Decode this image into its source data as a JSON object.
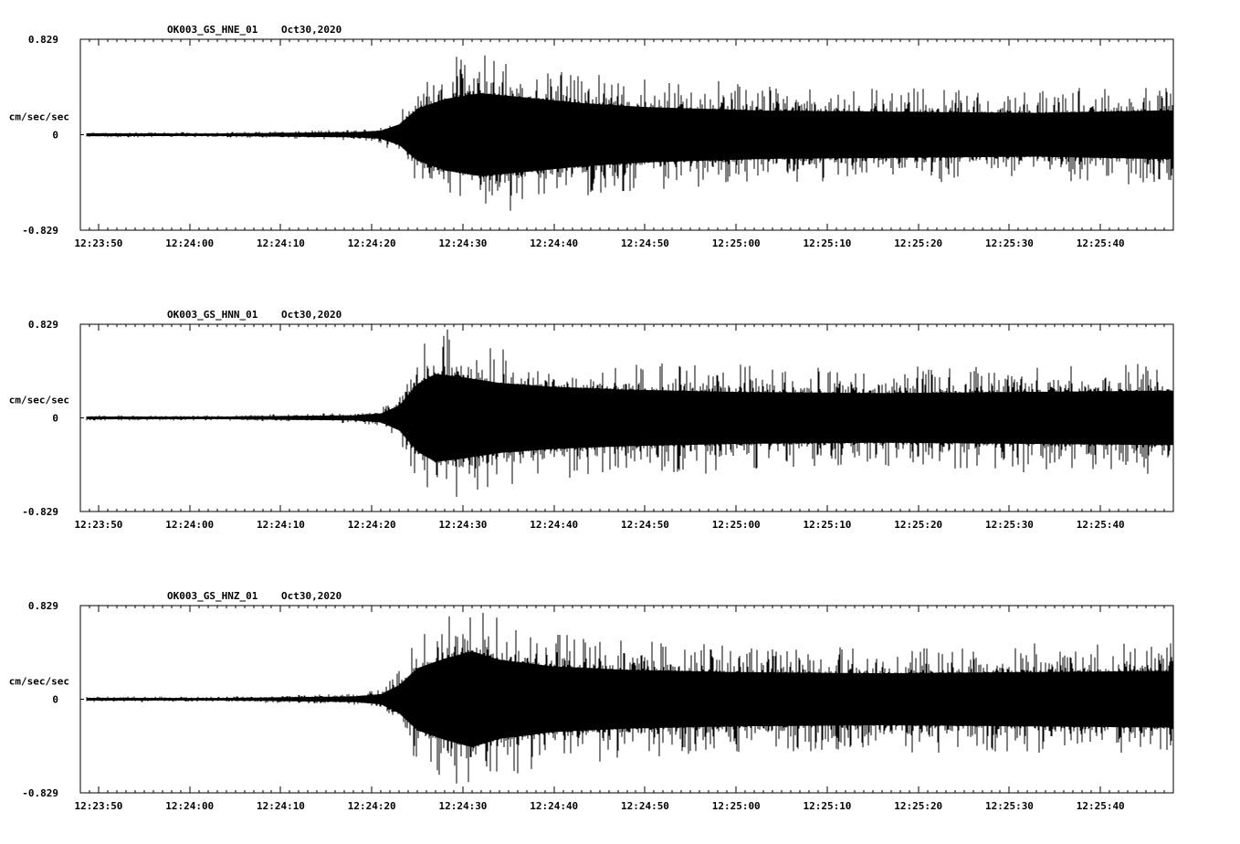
{
  "figure": {
    "background": "#ffffff",
    "trace_color": "#000000",
    "axis_color": "#000000",
    "text_color": "#000000"
  },
  "chart_data": [
    {
      "type": "line",
      "name": "HNE",
      "title": {
        "station": "OK003_GS_HNE_01",
        "date": "Oct30,2020"
      },
      "ylabel": "cm/sec/sec",
      "ylim": [
        -0.829,
        0.829
      ],
      "y_tick_labels": [
        "0.829",
        "0",
        "-0.829"
      ],
      "x_start_time": "12:23:48",
      "x_span_seconds": 120,
      "x_tick_labels": [
        "12:23:50",
        "12:24:00",
        "12:24:10",
        "12:24:20",
        "12:24:30",
        "12:24:40",
        "12:24:50",
        "12:25:00",
        "12:25:10",
        "12:25:20",
        "12:25:30",
        "12:25:40"
      ],
      "x_tick_offsets_s": [
        2,
        12,
        22,
        32,
        42,
        52,
        62,
        72,
        82,
        92,
        102,
        112
      ],
      "x_minor_tick_interval_s": 1,
      "seed": 101,
      "envelope_t_s": [
        0,
        15,
        20,
        30,
        33,
        35,
        37,
        40,
        44,
        48,
        55,
        62,
        75,
        90,
        105,
        118,
        120
      ],
      "envelope_amp": [
        0.025,
        0.022,
        0.03,
        0.045,
        0.07,
        0.18,
        0.45,
        0.62,
        0.72,
        0.66,
        0.55,
        0.48,
        0.42,
        0.4,
        0.38,
        0.42,
        0.42
      ]
    },
    {
      "type": "line",
      "name": "HNN",
      "title": {
        "station": "OK003_GS_HNN_01",
        "date": "Oct30,2020"
      },
      "ylabel": "cm/sec/sec",
      "ylim": [
        -0.829,
        0.829
      ],
      "y_tick_labels": [
        "0.829",
        "0",
        "-0.829"
      ],
      "x_start_time": "12:23:48",
      "x_span_seconds": 120,
      "x_tick_labels": [
        "12:23:50",
        "12:24:00",
        "12:24:10",
        "12:24:20",
        "12:24:30",
        "12:24:40",
        "12:24:50",
        "12:25:00",
        "12:25:10",
        "12:25:20",
        "12:25:30",
        "12:25:40"
      ],
      "x_tick_offsets_s": [
        2,
        12,
        22,
        32,
        42,
        52,
        62,
        72,
        82,
        92,
        102,
        112
      ],
      "x_minor_tick_interval_s": 1,
      "seed": 202,
      "envelope_t_s": [
        0,
        15,
        20,
        30,
        33,
        35,
        37,
        39,
        42,
        46,
        52,
        60,
        72,
        88,
        104,
        118,
        120
      ],
      "envelope_amp": [
        0.025,
        0.022,
        0.03,
        0.045,
        0.08,
        0.22,
        0.6,
        0.78,
        0.72,
        0.62,
        0.55,
        0.5,
        0.46,
        0.44,
        0.46,
        0.48,
        0.48
      ]
    },
    {
      "type": "line",
      "name": "HNZ",
      "title": {
        "station": "OK003_GS_HNZ_01",
        "date": "Oct30,2020"
      },
      "ylabel": "cm/sec/sec",
      "ylim": [
        -0.829,
        0.829
      ],
      "y_tick_labels": [
        "0.829",
        "0",
        "-0.829"
      ],
      "x_start_time": "12:23:48",
      "x_span_seconds": 120,
      "x_tick_labels": [
        "12:23:50",
        "12:24:00",
        "12:24:10",
        "12:24:20",
        "12:24:30",
        "12:24:40",
        "12:24:50",
        "12:25:00",
        "12:25:10",
        "12:25:20",
        "12:25:30",
        "12:25:40"
      ],
      "x_tick_offsets_s": [
        2,
        12,
        22,
        32,
        42,
        52,
        62,
        72,
        82,
        92,
        102,
        112
      ],
      "x_minor_tick_interval_s": 1,
      "seed": 303,
      "envelope_t_s": [
        0,
        15,
        20,
        30,
        33,
        35,
        37,
        40,
        43,
        46,
        52,
        60,
        72,
        88,
        104,
        118,
        120
      ],
      "envelope_amp": [
        0.025,
        0.022,
        0.03,
        0.05,
        0.09,
        0.25,
        0.55,
        0.72,
        0.85,
        0.7,
        0.58,
        0.52,
        0.48,
        0.46,
        0.48,
        0.5,
        0.5
      ]
    }
  ]
}
